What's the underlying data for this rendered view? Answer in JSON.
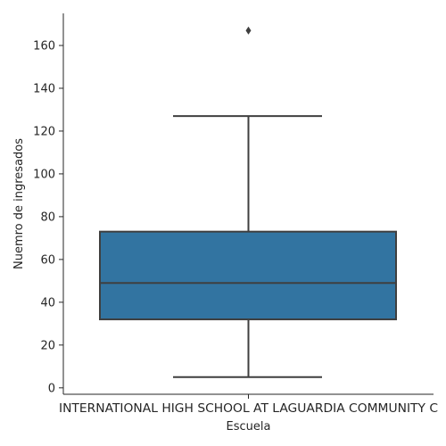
{
  "chart_data": {
    "type": "box",
    "xlabel": "Escuela",
    "ylabel": "Nuemro de ingresados",
    "categories": [
      "INTERNATIONAL HIGH SCHOOL AT LAGUARDIA COMMUNITY C"
    ],
    "box": {
      "whisker_low": 5,
      "q1": 32,
      "median": 49,
      "q3": 73,
      "whisker_high": 127,
      "outliers": [
        167
      ]
    },
    "ylim": [
      -3,
      175
    ],
    "yticks": [
      0,
      20,
      40,
      60,
      80,
      100,
      120,
      140,
      160
    ],
    "grid": false,
    "colors": {
      "box_fill": "#3274a1",
      "line": "#3f3f3f",
      "axis": "#262626"
    }
  }
}
